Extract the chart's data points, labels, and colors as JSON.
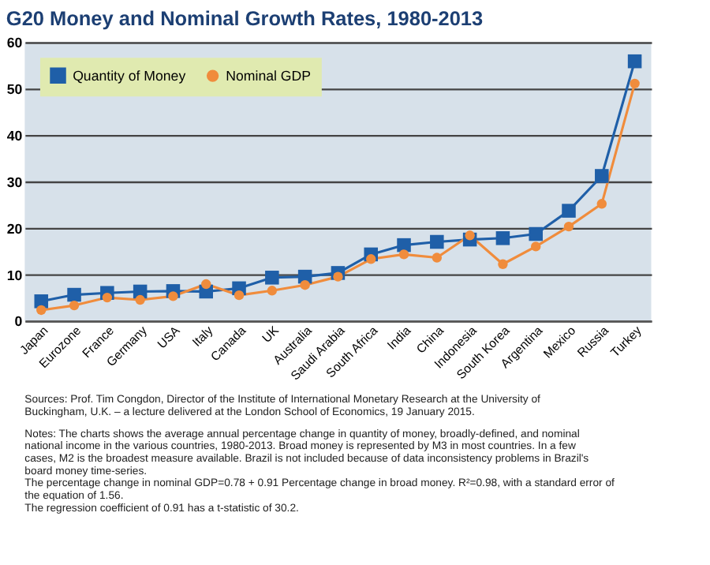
{
  "chart_data": {
    "type": "line",
    "title": "G20 Money and Nominal Growth Rates, 1980-2013",
    "categories": [
      "Japan",
      "Eurozone",
      "France",
      "Germany",
      "USA",
      "Italy",
      "Canada",
      "UK",
      "Australia",
      "Saudi Arabia",
      "South Africa",
      "India",
      "China",
      "Indonesia",
      "South Korea",
      "Argentina",
      "Mexico",
      "Russia",
      "Turkey"
    ],
    "series": [
      {
        "name": "Quantity of Money",
        "color": "#1f5fa8",
        "marker": "square",
        "values": [
          4.2,
          5.6,
          6.0,
          6.3,
          6.4,
          6.3,
          7.0,
          9.3,
          9.5,
          10.3,
          14.3,
          16.3,
          17.0,
          17.5,
          17.8,
          18.7,
          23.7,
          31.2,
          55.9
        ]
      },
      {
        "name": "Nominal GDP",
        "color": "#f08c3c",
        "marker": "circle",
        "values": [
          2.3,
          3.3,
          5.0,
          4.5,
          5.3,
          7.9,
          5.5,
          6.5,
          7.7,
          9.5,
          13.3,
          14.3,
          13.6,
          18.4,
          12.2,
          16.0,
          20.3,
          25.2,
          51.1
        ]
      }
    ],
    "ylim": [
      0,
      60
    ],
    "yticks": [
      0,
      10,
      20,
      30,
      40,
      50,
      60
    ],
    "grid": "y",
    "legend": "top left",
    "line_style": "solid",
    "annotations": [
      "Sources: Prof. Tim Congdon, Director of the Institute of International Monetary Research at the University of Buckingham, U.K. – a lecture delivered at the London School of Economics, 19 January 2015.",
      "Notes: The charts shows the average annual percentage change in quantity of money, broadly-defined, and nominal national income in the various countries, 1980-2013. Broad money is represented by M3 in most countries. In a few cases, M2 is the broadest measure available. Brazil is not included because of data inconsistency problems in Brazil's board money time-series.",
      "The percentage change in nominal GDP=0.78 + 0.91 Percentage change in broad money. R²=0.98, with a standard error of the equation of 1.56.",
      "The regression coefficient of 0.91 has a t-statistic of 30.2."
    ]
  }
}
